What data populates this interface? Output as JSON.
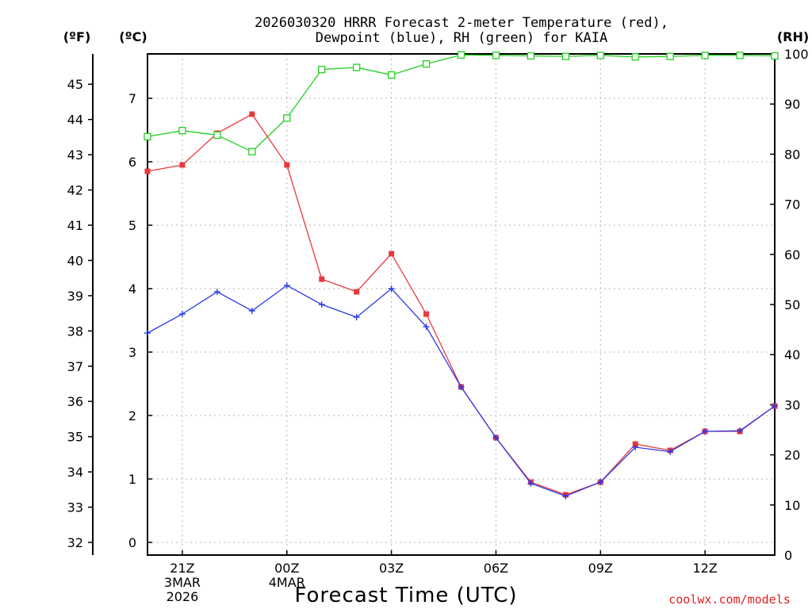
{
  "chart_data": {
    "type": "line",
    "title_line1": "2026030320 HRRR Forecast 2-meter Temperature (red),",
    "title_line2": "Dewpoint (blue), RH (green) for KAIA",
    "xlabel": "Forecast Time (UTC)",
    "credit": "coolwx.com/models",
    "unit_labels": {
      "fahrenheit": "(ºF)",
      "celsius": "(ºC)",
      "rh": "(RH)"
    },
    "x_range": [
      0,
      18
    ],
    "celsius_range": [
      -0.2,
      7.7
    ],
    "rh_range": [
      0,
      100
    ],
    "fahrenheit_ticks": [
      32,
      33,
      34,
      35,
      36,
      37,
      38,
      39,
      40,
      41,
      42,
      43,
      44,
      45
    ],
    "celsius_ticks": [
      0,
      1,
      2,
      3,
      4,
      5,
      6,
      7
    ],
    "rh_ticks": [
      0,
      10,
      20,
      30,
      40,
      50,
      60,
      70,
      80,
      90,
      100
    ],
    "x_ticks": [
      {
        "x": 1,
        "lines": [
          "21Z",
          "3MAR",
          "2026"
        ]
      },
      {
        "x": 4,
        "lines": [
          "00Z",
          "4MAR"
        ]
      },
      {
        "x": 7,
        "lines": [
          "03Z"
        ]
      },
      {
        "x": 10,
        "lines": [
          "06Z"
        ]
      },
      {
        "x": 13,
        "lines": [
          "09Z"
        ]
      },
      {
        "x": 16,
        "lines": [
          "12Z"
        ]
      }
    ],
    "series": [
      {
        "name": "Temperature (ºC)",
        "color": "#e8393c",
        "marker": "filled-square",
        "x": [
          0,
          1,
          2,
          3,
          4,
          5,
          6,
          7,
          8,
          9,
          10,
          11,
          12,
          13,
          14,
          15,
          16,
          17,
          18
        ],
        "values": [
          5.85,
          5.95,
          6.45,
          6.75,
          5.95,
          4.15,
          3.95,
          4.55,
          3.6,
          2.45,
          1.65,
          0.95,
          0.75,
          0.95,
          1.55,
          1.45,
          1.75,
          1.75,
          2.15
        ]
      },
      {
        "name": "Dewpoint (ºC)",
        "color": "#2a3be8",
        "marker": "plus",
        "x": [
          0,
          1,
          2,
          3,
          4,
          5,
          6,
          7,
          8,
          9,
          10,
          11,
          12,
          13,
          14,
          15,
          16,
          17,
          18
        ],
        "values": [
          3.3,
          3.6,
          3.95,
          3.65,
          4.05,
          3.75,
          3.55,
          4.0,
          3.4,
          2.45,
          1.65,
          0.93,
          0.73,
          0.95,
          1.5,
          1.43,
          1.75,
          1.76,
          2.15
        ]
      },
      {
        "name": "RH (%)",
        "color": "#22d022",
        "marker": "open-square",
        "axis": "right",
        "x": [
          0,
          1,
          2,
          3,
          4,
          5,
          6,
          7,
          8,
          9,
          10,
          11,
          12,
          13,
          14,
          15,
          16,
          17,
          18
        ],
        "values": [
          83.5,
          84.7,
          83.8,
          80.5,
          87.2,
          96.9,
          97.3,
          95.8,
          98.0,
          99.8,
          99.7,
          99.6,
          99.5,
          99.7,
          99.4,
          99.5,
          99.7,
          99.7,
          99.6
        ]
      }
    ]
  }
}
